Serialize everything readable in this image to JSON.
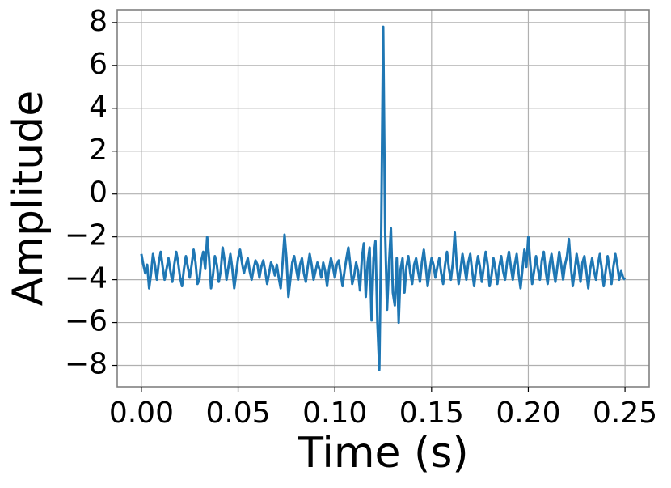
{
  "chart_data": {
    "type": "line",
    "xlabel": "Time (s)",
    "ylabel": "Amplitude",
    "xlim": [
      -0.0125,
      0.2625
    ],
    "ylim": [
      -9,
      8.6
    ],
    "xticks": [
      {
        "value": 0,
        "label": "0.00"
      },
      0.05,
      {
        "value": 0.1,
        "label": "0.10"
      },
      0.15,
      {
        "value": 0.2,
        "label": "0.20"
      },
      0.25
    ],
    "yticks": [
      {
        "value": -8,
        "label": "−8"
      },
      {
        "value": -6,
        "label": "−6"
      },
      {
        "value": -4,
        "label": "−4"
      },
      {
        "value": -2,
        "label": "−2"
      },
      0,
      2,
      4,
      6,
      8
    ],
    "grid": true,
    "series": [
      {
        "color": "#1f77b4",
        "x": [
          0,
          0.001,
          0.002,
          0.003,
          0.004,
          0.005,
          0.006,
          0.007,
          0.008,
          0.009,
          0.01,
          0.011,
          0.012,
          0.013,
          0.014,
          0.015,
          0.016,
          0.017,
          0.018,
          0.019,
          0.02,
          0.021,
          0.022,
          0.023,
          0.024,
          0.025,
          0.026,
          0.027,
          0.028,
          0.029,
          0.03,
          0.031,
          0.032,
          0.033,
          0.034,
          0.035,
          0.036,
          0.037,
          0.038,
          0.039,
          0.04,
          0.041,
          0.042,
          0.043,
          0.044,
          0.045,
          0.046,
          0.047,
          0.048,
          0.049,
          0.05,
          0.051,
          0.052,
          0.053,
          0.054,
          0.055,
          0.056,
          0.057,
          0.058,
          0.059,
          0.06,
          0.061,
          0.062,
          0.063,
          0.064,
          0.065,
          0.066,
          0.067,
          0.068,
          0.069,
          0.07,
          0.071,
          0.072,
          0.073,
          0.074,
          0.075,
          0.076,
          0.077,
          0.078,
          0.079,
          0.08,
          0.081,
          0.082,
          0.083,
          0.084,
          0.085,
          0.086,
          0.087,
          0.088,
          0.089,
          0.09,
          0.091,
          0.092,
          0.093,
          0.094,
          0.095,
          0.096,
          0.097,
          0.098,
          0.099,
          0.1,
          0.101,
          0.102,
          0.103,
          0.104,
          0.105,
          0.106,
          0.107,
          0.108,
          0.109,
          0.11,
          0.111,
          0.112,
          0.113,
          0.114,
          0.115,
          0.116,
          0.117,
          0.118,
          0.119,
          0.12,
          0.121,
          0.122,
          0.123,
          0.124,
          0.125,
          0.126,
          0.127,
          0.128,
          0.129,
          0.13,
          0.131,
          0.132,
          0.133,
          0.134,
          0.135,
          0.136,
          0.137,
          0.138,
          0.139,
          0.14,
          0.141,
          0.142,
          0.143,
          0.144,
          0.145,
          0.146,
          0.147,
          0.148,
          0.149,
          0.15,
          0.151,
          0.152,
          0.153,
          0.154,
          0.155,
          0.156,
          0.157,
          0.158,
          0.159,
          0.16,
          0.161,
          0.162,
          0.163,
          0.164,
          0.165,
          0.166,
          0.167,
          0.168,
          0.169,
          0.17,
          0.171,
          0.172,
          0.173,
          0.174,
          0.175,
          0.176,
          0.177,
          0.178,
          0.179,
          0.18,
          0.181,
          0.182,
          0.183,
          0.184,
          0.185,
          0.186,
          0.187,
          0.188,
          0.189,
          0.19,
          0.191,
          0.192,
          0.193,
          0.194,
          0.195,
          0.196,
          0.197,
          0.198,
          0.199,
          0.2,
          0.201,
          0.202,
          0.203,
          0.204,
          0.205,
          0.206,
          0.207,
          0.208,
          0.209,
          0.21,
          0.211,
          0.212,
          0.213,
          0.214,
          0.215,
          0.216,
          0.217,
          0.218,
          0.219,
          0.22,
          0.221,
          0.222,
          0.223,
          0.224,
          0.225,
          0.226,
          0.227,
          0.228,
          0.229,
          0.23,
          0.231,
          0.232,
          0.233,
          0.234,
          0.235,
          0.236,
          0.237,
          0.238,
          0.239,
          0.24,
          0.241,
          0.242,
          0.243,
          0.244,
          0.245,
          0.246,
          0.247,
          0.248,
          0.249,
          0.25
        ],
        "values": [
          -2.8,
          -3.3,
          -3.7,
          -3.3,
          -4.4,
          -3.7,
          -2.8,
          -3.3,
          -4.0,
          -3.2,
          -2.7,
          -3.4,
          -4.0,
          -3.5,
          -3.0,
          -3.6,
          -4.1,
          -3.3,
          -2.7,
          -3.2,
          -3.9,
          -4.3,
          -3.5,
          -2.9,
          -3.4,
          -3.9,
          -3.3,
          -2.6,
          -3.2,
          -4.2,
          -4.0,
          -3.1,
          -2.7,
          -3.5,
          -2.0,
          -3.0,
          -4.4,
          -3.8,
          -2.9,
          -3.3,
          -4.1,
          -3.6,
          -2.5,
          -3.1,
          -4.0,
          -3.4,
          -2.8,
          -3.5,
          -4.4,
          -3.7,
          -3.0,
          -2.6,
          -3.2,
          -3.7,
          -3.3,
          -3.0,
          -3.6,
          -4.0,
          -3.5,
          -3.1,
          -3.3,
          -3.9,
          -3.4,
          -3.1,
          -3.6,
          -4.2,
          -3.7,
          -3.2,
          -3.4,
          -3.8,
          -3.3,
          -3.9,
          -4.4,
          -3.2,
          -1.9,
          -3.0,
          -4.8,
          -4.0,
          -3.2,
          -2.9,
          -3.5,
          -4.0,
          -3.3,
          -3.0,
          -3.7,
          -4.1,
          -3.4,
          -2.8,
          -3.3,
          -4.0,
          -3.6,
          -3.2,
          -3.5,
          -3.9,
          -3.2,
          -3.6,
          -4.3,
          -3.5,
          -3.0,
          -3.4,
          -3.9,
          -3.3,
          -3.1,
          -3.7,
          -4.3,
          -3.6,
          -3.0,
          -2.5,
          -3.3,
          -4.2,
          -3.8,
          -3.2,
          -3.6,
          -4.5,
          -3.0,
          -2.3,
          -4.8,
          -3.2,
          -2.5,
          -5.9,
          -3.0,
          -2.2,
          -6.0,
          -8.2,
          -1.5,
          7.8,
          -1.7,
          -5.4,
          -3.3,
          -1.6,
          -4.6,
          -5.2,
          -3.0,
          -6.0,
          -3.5,
          -3.0,
          -4.6,
          -3.4,
          -2.9,
          -3.7,
          -4.2,
          -3.3,
          -3.0,
          -3.6,
          -4.1,
          -3.2,
          -2.6,
          -3.4,
          -4.3,
          -3.6,
          -3.0,
          -3.3,
          -3.9,
          -3.4,
          -3.0,
          -3.7,
          -4.2,
          -3.3,
          -2.7,
          -3.5,
          -4.0,
          -3.2,
          -1.8,
          -3.3,
          -4.2,
          -3.5,
          -2.8,
          -3.4,
          -4.0,
          -3.2,
          -2.8,
          -3.6,
          -4.3,
          -3.5,
          -2.9,
          -3.4,
          -4.1,
          -3.4,
          -2.7,
          -3.3,
          -4.3,
          -3.8,
          -3.0,
          -3.5,
          -4.2,
          -3.4,
          -2.9,
          -3.6,
          -4.0,
          -3.2,
          -2.7,
          -3.4,
          -4.0,
          -3.3,
          -2.8,
          -3.7,
          -4.4,
          -3.5,
          -2.6,
          -3.4,
          -2.0,
          -3.2,
          -4.2,
          -3.6,
          -2.9,
          -3.5,
          -4.0,
          -3.1,
          -2.7,
          -3.6,
          -4.2,
          -3.3,
          -2.8,
          -3.5,
          -4.1,
          -3.4,
          -2.7,
          -3.3,
          -4.0,
          -3.3,
          -2.9,
          -2.1,
          -3.4,
          -4.3,
          -3.6,
          -2.8,
          -3.4,
          -4.1,
          -3.2,
          -2.9,
          -3.6,
          -4.4,
          -3.5,
          -3.0,
          -3.6,
          -4.0,
          -3.3,
          -2.8,
          -3.5,
          -4.3,
          -3.6,
          -2.9,
          -3.5,
          -4.2,
          -3.4,
          -2.8,
          -3.3,
          -4.0,
          -3.6,
          -3.9,
          -4.0
        ]
      }
    ]
  }
}
